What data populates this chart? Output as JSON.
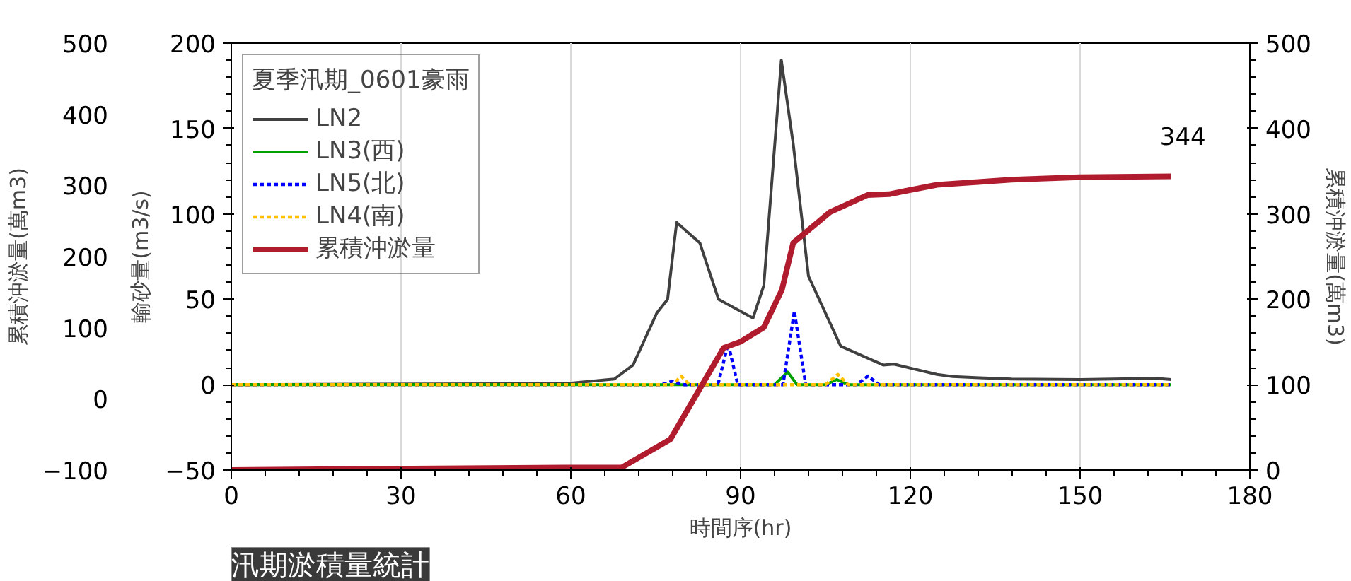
{
  "chart_data": {
    "type": "line",
    "legend_title": "夏季汛期_0601豪雨",
    "xlabel": "時間序(hr)",
    "ylabel": "輸砂量(m3/s)",
    "y2label": "累積沖淤量(萬m3)",
    "y3label": "累積沖淤量(萬m3)",
    "annotations": [
      "汛期淤積量統計"
    ],
    "xlim": [
      0,
      180
    ],
    "xticks": [
      0,
      30,
      60,
      90,
      120,
      150,
      180
    ],
    "ylim": [
      -50,
      200
    ],
    "yticks": [
      -50,
      0,
      50,
      100,
      150,
      200
    ],
    "y2lim": [
      0,
      500
    ],
    "y2ticks": [
      0,
      100,
      200,
      300,
      400,
      500
    ],
    "y3lim": [
      -100,
      500
    ],
    "y3ticks": [
      -100,
      0,
      100,
      200,
      300,
      400,
      500
    ],
    "grid": "x",
    "legend": "top left",
    "series": [
      {
        "name": "LN2",
        "color": "#404040",
        "line_style": "solid",
        "x": [
          0,
          47.5,
          58.8,
          67.7,
          71,
          75.2,
          77.1,
          78.7,
          82.8,
          86.1,
          92.2,
          94.1,
          97.2,
          99.3,
          102,
          107.7,
          115.2,
          117.1,
          124.7,
          127.5,
          132.2,
          137.9,
          150.1,
          163.3,
          166.1
        ],
        "values": [
          0,
          0.5,
          0.5,
          3.3,
          11.5,
          42,
          50,
          95,
          83,
          50,
          39,
          58,
          190,
          141,
          63.5,
          22.5,
          11.5,
          12,
          6,
          4.7,
          4,
          3.3,
          3,
          3.7,
          3
        ]
      },
      {
        "name": "LN3(西)",
        "color": "#00a000",
        "line_style": "solid",
        "x": [
          0,
          96,
          98.3,
          100,
          105,
          107,
          109,
          166
        ],
        "values": [
          0,
          0,
          7.4,
          0,
          0,
          3,
          0,
          0
        ]
      },
      {
        "name": "LN5(北)",
        "color": "#0000ff",
        "line_style": "dashed",
        "x": [
          0,
          76,
          78,
          80,
          86,
          87.8,
          89.5,
          97.5,
          99.5,
          101.5,
          110.5,
          112.5,
          114.5,
          166
        ],
        "values": [
          0,
          0,
          2,
          0,
          0,
          24,
          0,
          0,
          43,
          0,
          0,
          5,
          0,
          0
        ]
      },
      {
        "name": "LN4(南)",
        "color": "#ffc000",
        "line_style": "dashed",
        "x": [
          0,
          78,
          79.5,
          81,
          105,
          107.2,
          109,
          166
        ],
        "values": [
          0,
          0,
          5,
          0,
          0,
          6,
          0,
          0
        ]
      },
      {
        "name": "累積沖淤量",
        "color": "#b01c2e",
        "line_style": "solid",
        "axis": "y2",
        "x": [
          0,
          58.8,
          69,
          77.6,
          87,
          89.9,
          94.1,
          97.3,
          99.3,
          105.8,
          112.4,
          116.2,
          124.7,
          137.9,
          150.1,
          166.1
        ],
        "values": [
          0,
          3,
          3,
          36,
          143,
          150,
          167,
          211,
          266,
          302,
          322,
          323,
          334,
          340,
          343,
          344
        ],
        "value_labels": [
          null,
          null,
          null,
          null,
          null,
          null,
          null,
          null,
          null,
          null,
          null,
          null,
          null,
          null,
          null,
          "344"
        ]
      }
    ]
  }
}
